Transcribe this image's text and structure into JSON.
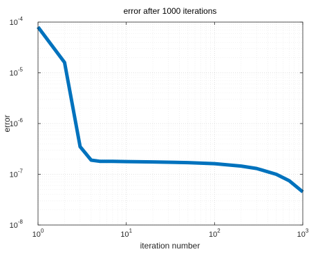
{
  "chart_data": {
    "type": "line",
    "title": "error after 1000 iterations",
    "xlabel": "iteration number",
    "ylabel": "error",
    "xscale": "log",
    "yscale": "log",
    "xlim": [
      1,
      1000
    ],
    "ylim": [
      1e-08,
      0.0001
    ],
    "grid": true,
    "minor_grid": true,
    "legend": "none",
    "line_color": "#0072BD",
    "x_ticks": [
      {
        "value": 1,
        "base": "10",
        "exp": "0"
      },
      {
        "value": 10,
        "base": "10",
        "exp": "1"
      },
      {
        "value": 100,
        "base": "10",
        "exp": "2"
      },
      {
        "value": 1000,
        "base": "10",
        "exp": "3"
      }
    ],
    "y_ticks": [
      {
        "value": 1e-08,
        "base": "10",
        "exp": "-8"
      },
      {
        "value": 1e-07,
        "base": "10",
        "exp": "-7"
      },
      {
        "value": 1e-06,
        "base": "10",
        "exp": "-6"
      },
      {
        "value": 1e-05,
        "base": "10",
        "exp": "-5"
      },
      {
        "value": 0.0001,
        "base": "10",
        "exp": "-4"
      }
    ],
    "series": [
      {
        "x": [
          1,
          2,
          3,
          4,
          5,
          7,
          10,
          20,
          50,
          100,
          200,
          300,
          500,
          700,
          1000
        ],
        "y": [
          8e-05,
          1.6e-05,
          3.5e-07,
          1.9e-07,
          1.8e-07,
          1.8e-07,
          1.78e-07,
          1.75e-07,
          1.7e-07,
          1.62e-07,
          1.45e-07,
          1.3e-07,
          1e-07,
          7.5e-08,
          4.5e-08
        ]
      }
    ]
  }
}
